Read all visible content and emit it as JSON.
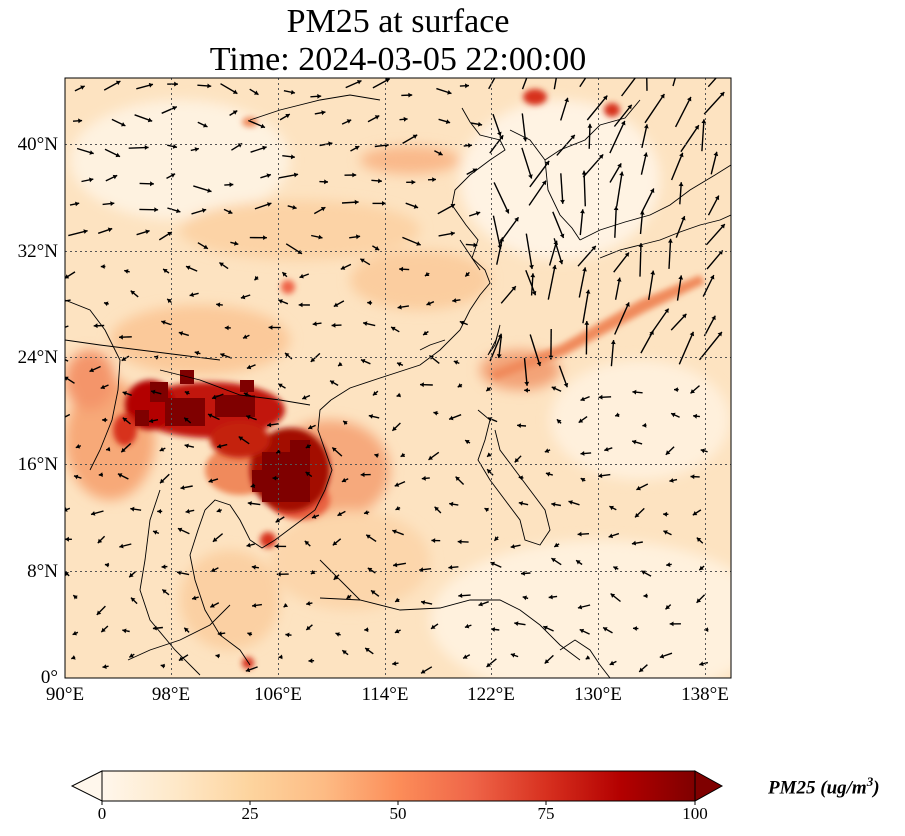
{
  "title": {
    "line1": "PM25 at surface",
    "line2": "Time: 2024-03-05 22:00:00"
  },
  "map": {
    "lat_ticks": [
      "0°",
      "8°N",
      "16°N",
      "24°N",
      "32°N",
      "40°N"
    ],
    "lon_ticks": [
      "90°E",
      "98°E",
      "106°E",
      "114°E",
      "122°E",
      "130°E",
      "138°E"
    ],
    "gridlines": true,
    "coastlines": true,
    "wind_vectors": true
  },
  "colorbar": {
    "label_prefix": "PM25 (ug/m",
    "label_sup": "3",
    "label_suffix": ")",
    "ticks": [
      "0",
      "25",
      "50",
      "75",
      "100"
    ],
    "range": [
      0,
      100
    ],
    "colormap": "OrRd",
    "colors": [
      "#fff7ec",
      "#fee8c8",
      "#fdd49e",
      "#fdbb84",
      "#fc8d59",
      "#ef6548",
      "#d7301f",
      "#b30000",
      "#7f0000"
    ],
    "extend": "both"
  }
}
